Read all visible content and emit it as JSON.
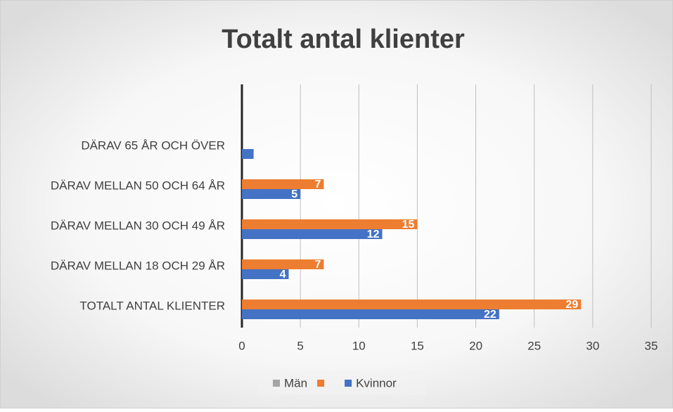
{
  "chart_data": {
    "type": "bar",
    "orientation": "horizontal",
    "title": "Totalt antal klienter",
    "categories": [
      "DÄRAV 65 ÅR OCH ÖVER",
      "DÄRAV MELLAN 50 OCH 64 ÅR",
      "DÄRAV MELLAN 30 OCH 49 ÅR",
      "DÄRAV MELLAN 18 OCH 29 ÅR",
      "TOTALT ANTAL KLIENTER"
    ],
    "series": [
      {
        "name": "Män",
        "color": "#a5a5a5",
        "values": [
          null,
          null,
          null,
          null,
          null
        ]
      },
      {
        "color": "#ed7d31",
        "values": [
          null,
          7,
          15,
          7,
          29
        ]
      },
      {
        "name": "Kvinnor",
        "color": "#4472c4",
        "values": [
          1,
          5,
          12,
          4,
          22
        ],
        "value_labels": [
          null,
          "5",
          "12",
          "4",
          "22"
        ]
      }
    ],
    "xlim": [
      0,
      35
    ],
    "xticks": [
      0,
      5,
      10,
      15,
      20,
      25,
      30,
      35
    ],
    "grid": true,
    "legend": "bottom"
  }
}
